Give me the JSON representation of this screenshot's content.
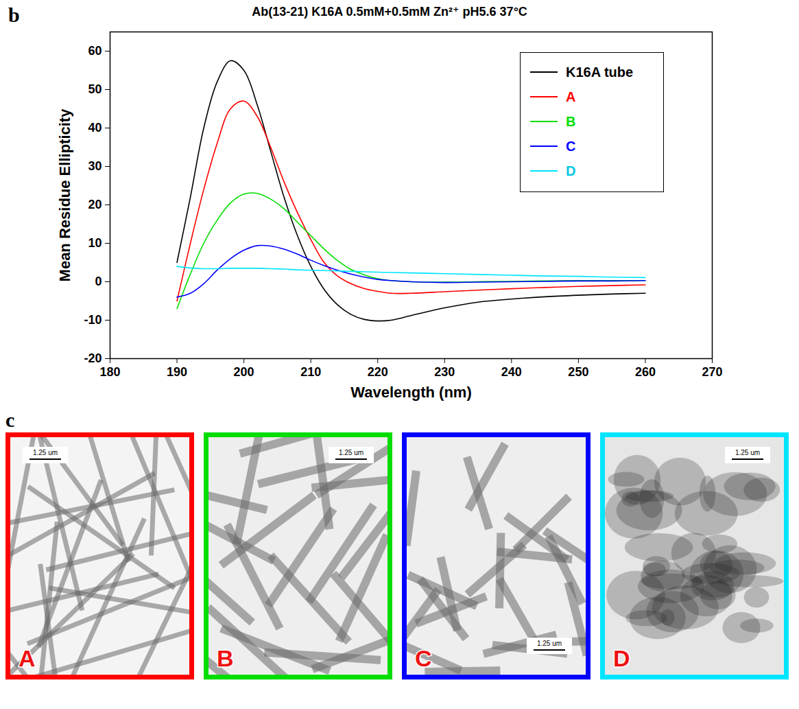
{
  "chart_data": {
    "type": "line",
    "title": "Ab(13-21) K16A 0.5mM+0.5mM Zn²⁺ pH5.6 37°C",
    "x_label": "Wavelength (nm)",
    "y_label": "Mean Residue Ellipticity",
    "xlim": [
      180,
      270
    ],
    "xticks": [
      180,
      190,
      200,
      210,
      220,
      230,
      240,
      250,
      260,
      270
    ],
    "ylim": [
      -20,
      65
    ],
    "yticks": [
      -20,
      -10,
      0,
      10,
      20,
      30,
      40,
      50,
      60
    ],
    "grid": false,
    "legend": "top-right",
    "x": [
      190,
      192,
      194,
      196,
      198,
      200,
      202,
      204,
      206,
      208,
      210,
      212,
      214,
      216,
      218,
      220,
      222,
      225,
      230,
      235,
      240,
      245,
      250,
      255,
      260
    ],
    "series": [
      {
        "name": "K16A tube",
        "color": "#000000",
        "values": [
          5,
          22,
          40,
          52,
          57.5,
          55,
          46,
          34,
          22,
          12,
          4,
          -2,
          -6,
          -8.5,
          -9.8,
          -10.2,
          -10,
          -8.8,
          -6.8,
          -5.3,
          -4.5,
          -3.9,
          -3.5,
          -3.2,
          -3
        ]
      },
      {
        "name": "A",
        "color": "#ff0000",
        "values": [
          -5,
          10,
          24,
          36,
          45,
          47,
          43,
          35,
          26,
          18,
          11,
          5,
          1.5,
          -0.5,
          -1.8,
          -2.5,
          -3,
          -3,
          -2.6,
          -2.2,
          -1.8,
          -1.5,
          -1.2,
          -1,
          -0.8
        ]
      },
      {
        "name": "B",
        "color": "#00dd00",
        "values": [
          -7,
          2,
          10,
          16,
          20.5,
          22.8,
          23,
          21.5,
          19,
          15.5,
          12,
          8.5,
          5.5,
          3.2,
          1.8,
          0.8,
          0.3,
          0,
          -0.1,
          0,
          0.1,
          0.2,
          0.3,
          0.3,
          0.3
        ]
      },
      {
        "name": "C",
        "color": "#0000ff",
        "values": [
          -4,
          -3,
          -0.5,
          3,
          6,
          8.2,
          9.4,
          9.3,
          8.5,
          7.2,
          5.6,
          4.2,
          3,
          2,
          1.2,
          0.6,
          0.3,
          0,
          -0.2,
          -0.1,
          0,
          0.1,
          0.2,
          0.2,
          0.3
        ]
      },
      {
        "name": "D",
        "color": "#00e5ff",
        "values": [
          4,
          3.6,
          3.4,
          3.4,
          3.5,
          3.5,
          3.5,
          3.4,
          3.3,
          3.1,
          3,
          2.9,
          2.8,
          2.7,
          2.6,
          2.5,
          2.4,
          2.3,
          2.1,
          1.9,
          1.7,
          1.5,
          1.4,
          1.2,
          1.1
        ]
      }
    ]
  },
  "figure": {
    "panel_letters": [
      "b",
      "c"
    ],
    "images": [
      {
        "label": "A",
        "scale_bar": "1.25 um"
      },
      {
        "label": "B",
        "scale_bar": "1.25 um"
      },
      {
        "label": "C",
        "scale_bar": "1.25 um"
      },
      {
        "label": "D",
        "scale_bar": "1.25 um"
      }
    ]
  }
}
